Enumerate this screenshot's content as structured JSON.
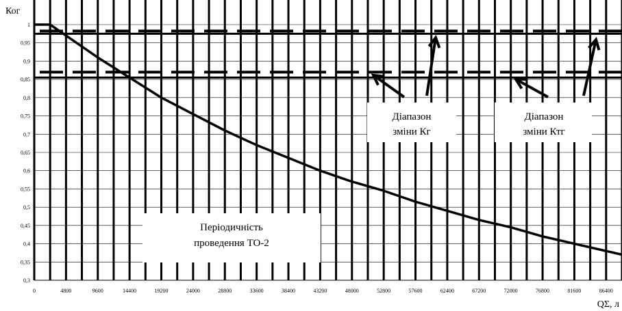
{
  "chart_data": {
    "type": "line",
    "ylabel": "Ког",
    "xlabel": "QΣ, л",
    "xlim": [
      0,
      88800
    ],
    "ylim": [
      0.3,
      1.0
    ],
    "x_ticks": [
      0,
      4800,
      9600,
      14400,
      19200,
      24000,
      28800,
      33600,
      38400,
      43200,
      48000,
      52800,
      57600,
      62400,
      67200,
      72000,
      76800,
      81600,
      86400
    ],
    "y_ticks": [
      0.3,
      0.35,
      0.4,
      0.45,
      0.5,
      0.55,
      0.6,
      0.65,
      0.7,
      0.75,
      0.8,
      0.85,
      0.9,
      0.95,
      1.0
    ],
    "y_tick_labels": [
      "0,3",
      "0,35",
      "0,4",
      "0,45",
      "0,5",
      "0,55",
      "0,6",
      "0,65",
      "0,7",
      "0,75",
      "0,8",
      "0,85",
      "0,9",
      "0,95",
      "1"
    ],
    "x_tick_labels": [
      "0",
      "4800",
      "9600",
      "14400",
      "19200",
      "24000",
      "28800",
      "33600",
      "38400",
      "43200",
      "48000",
      "52800",
      "57600",
      "62400",
      "67200",
      "72000",
      "76800",
      "81600",
      "86400"
    ],
    "grid": true,
    "series": [
      {
        "x": [
          0,
          2400,
          4800,
          9600,
          14400,
          19200,
          24000,
          28800,
          33600,
          38400,
          43200,
          48000,
          52800,
          57600,
          62400,
          67200,
          72000,
          76800,
          81600,
          86400,
          88800
        ],
        "values": [
          1.0,
          1.0,
          0.97,
          0.91,
          0.855,
          0.8,
          0.755,
          0.71,
          0.67,
          0.635,
          0.6,
          0.57,
          0.545,
          0.515,
          0.49,
          0.465,
          0.445,
          0.42,
          0.4,
          0.38,
          0.37
        ]
      }
    ],
    "reference_lines": [
      {
        "y": 0.975,
        "style": "solid"
      },
      {
        "y": 0.975,
        "style": "dashed"
      },
      {
        "y": 0.87,
        "style": "dashed"
      },
      {
        "y": 0.855,
        "style": "solid"
      }
    ],
    "annotations": [
      {
        "lines": [
          "Діапазон",
          "зміни Кг"
        ]
      },
      {
        "lines": [
          "Діапазон",
          "зміни Ктг"
        ]
      },
      {
        "lines": [
          "Періодичність",
          "проведення  ТО-2"
        ]
      }
    ]
  }
}
